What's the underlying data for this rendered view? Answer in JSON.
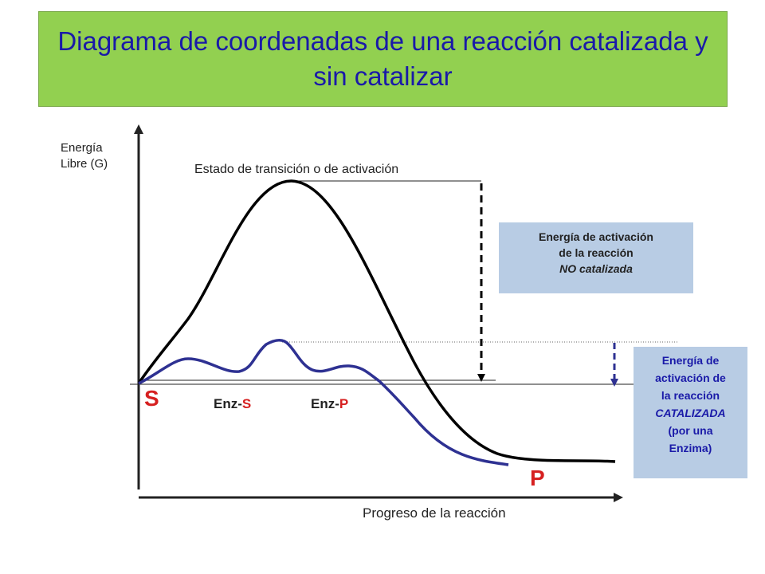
{
  "title": "Diagrama de coordenadas de una reacción catalizada y sin catalizar",
  "axes": {
    "y_label_line1": "Energía",
    "y_label_line2": "Libre (G)",
    "x_label": "Progreso de la reacción"
  },
  "transition_state_label": "Estado de transición o de activación",
  "points": {
    "substrate": "S",
    "product": "P",
    "enz_s_prefix": "Enz-",
    "enz_s_suffix": "S",
    "enz_p_prefix": "Enz-",
    "enz_p_suffix": "P"
  },
  "uncatalyzed_box": {
    "line1": "Energía de activación",
    "line2": "de la reacción",
    "line3": "NO catalizada"
  },
  "catalyzed_box": {
    "line1": "Energía de",
    "line2": "activación de",
    "line3": "la reacción",
    "line4": "CATALIZADA",
    "line5": "(por una",
    "line6": "Enzima)"
  },
  "colors": {
    "title_bg": "#92d050",
    "title_text": "#1a1aa8",
    "uncatalyzed_curve": "#000000",
    "catalyzed_curve": "#2e3192",
    "label_red": "#d62020",
    "box_bg": "#b8cce4"
  }
}
